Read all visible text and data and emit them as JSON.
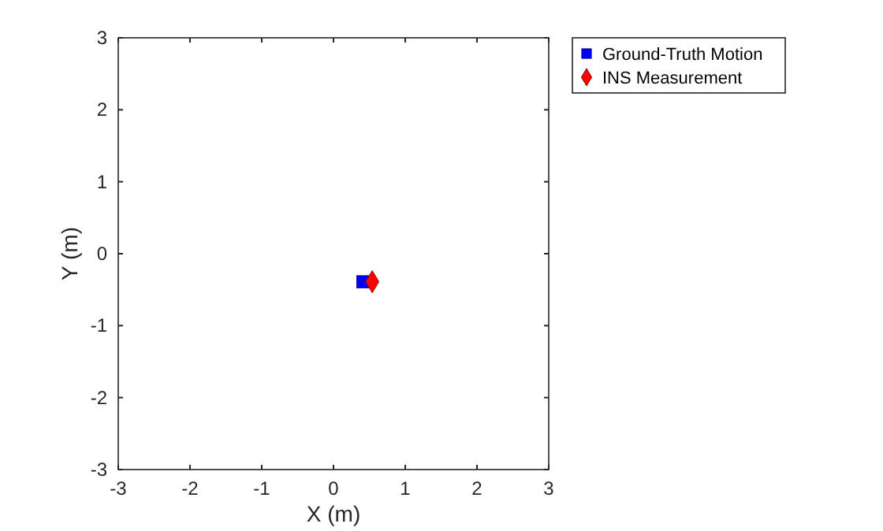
{
  "chart_data": {
    "type": "scatter",
    "xlabel": "X (m)",
    "ylabel": "Y (m)",
    "xlim": [
      -3,
      3
    ],
    "ylim": [
      -3,
      3
    ],
    "xticks": [
      -3,
      -2,
      -1,
      0,
      1,
      2,
      3
    ],
    "yticks": [
      -3,
      -2,
      -1,
      0,
      1,
      2,
      3
    ],
    "legend": "top right",
    "grid": false,
    "series": [
      {
        "name": "Ground-Truth Motion",
        "color": "#0000ff",
        "marker": "square",
        "x": [
          0.41
        ],
        "values": [
          -0.39
        ]
      },
      {
        "name": "INS Measurement",
        "color": "#ff0000",
        "marker": "diamond",
        "x": [
          0.54
        ],
        "values": [
          -0.39
        ]
      }
    ]
  }
}
